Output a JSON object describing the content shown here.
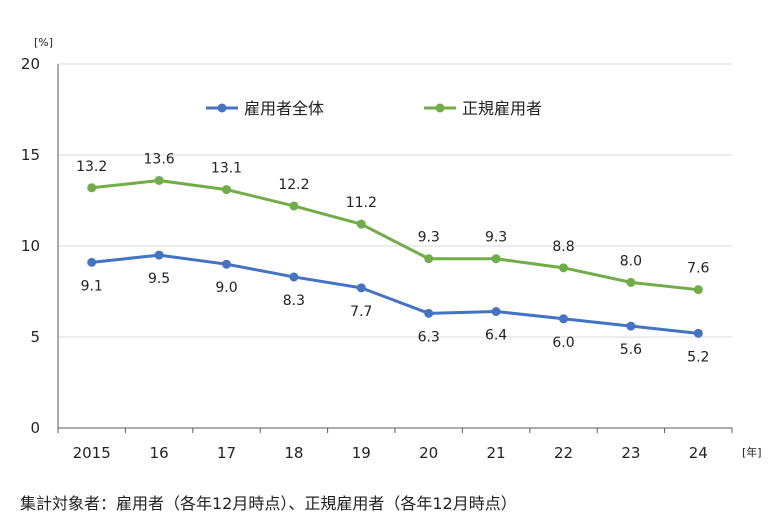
{
  "chart_data": {
    "type": "line",
    "categories": [
      "2015",
      "16",
      "17",
      "18",
      "19",
      "20",
      "21",
      "22",
      "23",
      "24"
    ],
    "series": [
      {
        "name": "雇用者全体",
        "values": [
          9.1,
          9.5,
          9.0,
          8.3,
          7.7,
          6.3,
          6.4,
          6.0,
          5.6,
          5.2
        ],
        "color": "#4472C4",
        "label_position": "below"
      },
      {
        "name": "正規雇用者",
        "values": [
          13.2,
          13.6,
          13.1,
          12.2,
          11.2,
          9.3,
          9.3,
          8.8,
          8.0,
          7.6
        ],
        "color": "#70AD47",
        "label_position": "above"
      }
    ],
    "ylim": [
      0,
      20
    ],
    "yticks": [
      "0",
      "5",
      "10",
      "15",
      "20"
    ],
    "yunit": "[%]",
    "xunit": "[年]",
    "grid": true,
    "legend_position": "top"
  },
  "footnote": "集計対象者：雇用者（各年12月時点）、正規雇用者（各年12月時点）"
}
